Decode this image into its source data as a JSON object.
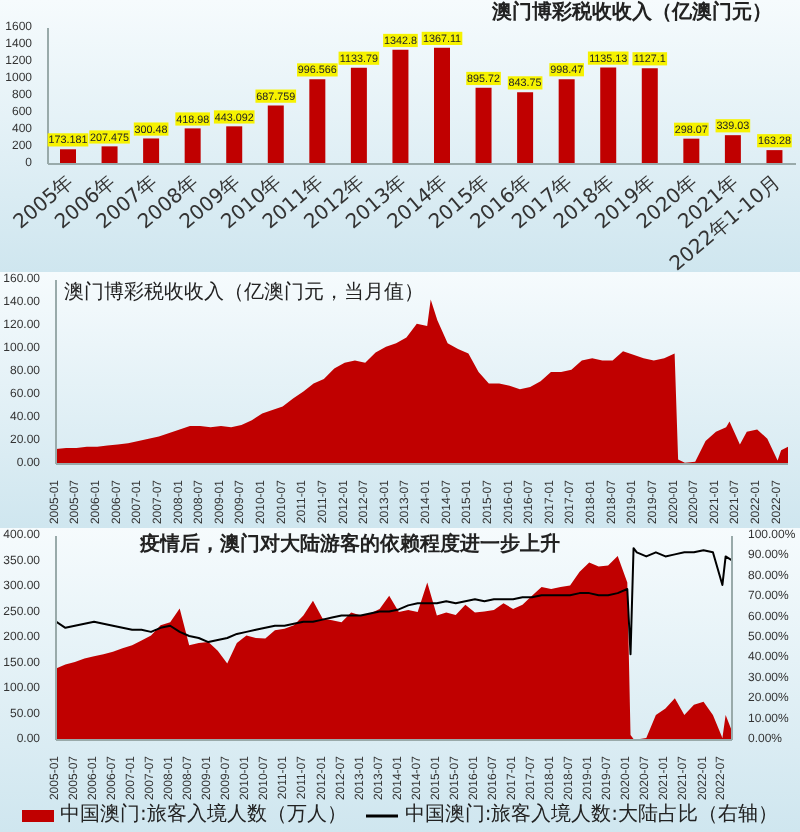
{
  "chart_data": [
    {
      "type": "bar",
      "title": "澳门博彩税收收入（亿澳门元）",
      "categories": [
        "2005年",
        "2006年",
        "2007年",
        "2008年",
        "2009年",
        "2010年",
        "2011年",
        "2012年",
        "2013年",
        "2014年",
        "2015年",
        "2016年",
        "2017年",
        "2018年",
        "2019年",
        "2020年",
        "2021年",
        "2022年1-10月"
      ],
      "values": [
        173.181,
        207.475,
        300.48,
        418.98,
        443.092,
        687.759,
        996.566,
        1133.79,
        1342.8,
        1367.11,
        895.72,
        843.75,
        998.47,
        1135.13,
        1127.1,
        298.07,
        339.03,
        163.28
      ],
      "color": "#c00000",
      "ylim": [
        0,
        1600
      ],
      "yticks": [
        0,
        200,
        400,
        600,
        800,
        1000,
        1200,
        1400,
        1600
      ],
      "data_labels": true
    },
    {
      "type": "area",
      "title": "澳门博彩税收收入（亿澳门元，当月值）",
      "x": [
        "2005-01",
        "2005-04",
        "2005-07",
        "2005-10",
        "2006-01",
        "2006-04",
        "2006-07",
        "2006-10",
        "2007-01",
        "2007-04",
        "2007-07",
        "2007-10",
        "2008-01",
        "2008-04",
        "2008-07",
        "2008-10",
        "2009-01",
        "2009-04",
        "2009-07",
        "2009-10",
        "2010-01",
        "2010-04",
        "2010-07",
        "2010-10",
        "2011-01",
        "2011-04",
        "2011-07",
        "2011-10",
        "2012-01",
        "2012-04",
        "2012-07",
        "2012-10",
        "2013-01",
        "2013-04",
        "2013-07",
        "2013-10",
        "2014-01",
        "2014-02",
        "2014-04",
        "2014-07",
        "2014-10",
        "2015-01",
        "2015-04",
        "2015-07",
        "2015-10",
        "2016-01",
        "2016-04",
        "2016-07",
        "2016-10",
        "2017-01",
        "2017-04",
        "2017-07",
        "2017-10",
        "2018-01",
        "2018-04",
        "2018-07",
        "2018-10",
        "2019-01",
        "2019-04",
        "2019-07",
        "2019-10",
        "2020-01",
        "2020-02",
        "2020-04",
        "2020-07",
        "2020-10",
        "2021-01",
        "2021-04",
        "2021-05",
        "2021-08",
        "2021-10",
        "2022-01",
        "2022-04",
        "2022-07",
        "2022-08",
        "2022-10"
      ],
      "values": [
        13,
        14,
        14,
        15,
        15,
        16,
        17,
        18,
        20,
        22,
        24,
        27,
        30,
        33,
        33,
        32,
        33,
        32,
        34,
        38,
        44,
        47,
        50,
        57,
        63,
        70,
        74,
        83,
        88,
        90,
        88,
        97,
        102,
        105,
        110,
        122,
        120,
        143,
        125,
        105,
        100,
        96,
        80,
        70,
        70,
        68,
        65,
        67,
        72,
        80,
        80,
        82,
        90,
        92,
        90,
        90,
        98,
        95,
        92,
        90,
        92,
        96,
        4,
        1,
        2,
        20,
        28,
        32,
        37,
        17,
        28,
        30,
        22,
        3,
        12,
        15
      ],
      "color": "#c00000",
      "xlim": [
        "2005-01",
        "2022-10"
      ],
      "xticks": [
        "2005-01",
        "2005-07",
        "2006-01",
        "2006-07",
        "2007-01",
        "2007-07",
        "2008-01",
        "2008-07",
        "2009-01",
        "2009-07",
        "2010-01",
        "2010-07",
        "2011-01",
        "2011-07",
        "2012-01",
        "2012-07",
        "2013-01",
        "2013-07",
        "2014-01",
        "2014-07",
        "2015-01",
        "2015-07",
        "2016-01",
        "2016-07",
        "2017-01",
        "2017-07",
        "2018-01",
        "2018-07",
        "2019-01",
        "2019-07",
        "2020-01",
        "2020-07",
        "2021-01",
        "2021-07",
        "2022-01",
        "2022-07"
      ],
      "ylim": [
        0,
        160
      ],
      "yticks": [
        {
          "value": 0,
          "label": "0.00"
        },
        {
          "value": 20,
          "label": "20.00"
        },
        {
          "value": 40,
          "label": "40.00"
        },
        {
          "value": 60,
          "label": "60.00"
        },
        {
          "value": 80,
          "label": "80.00"
        },
        {
          "value": 100,
          "label": "100.00"
        },
        {
          "value": 120,
          "label": "120.00"
        },
        {
          "value": 140,
          "label": "140.00"
        },
        {
          "value": 160,
          "label": "160.00"
        }
      ]
    },
    {
      "type": "area",
      "title": "疫情后，澳门对大陆游客的依赖程度进一步上升",
      "x": [
        "2005-01",
        "2005-04",
        "2005-07",
        "2005-10",
        "2006-01",
        "2006-04",
        "2006-07",
        "2006-10",
        "2007-01",
        "2007-04",
        "2007-07",
        "2007-10",
        "2008-01",
        "2008-04",
        "2008-07",
        "2008-10",
        "2009-01",
        "2009-04",
        "2009-07",
        "2009-10",
        "2010-01",
        "2010-04",
        "2010-07",
        "2010-10",
        "2011-01",
        "2011-04",
        "2011-07",
        "2011-10",
        "2012-01",
        "2012-04",
        "2012-07",
        "2012-10",
        "2013-01",
        "2013-04",
        "2013-07",
        "2013-10",
        "2014-01",
        "2014-04",
        "2014-07",
        "2014-10",
        "2015-01",
        "2015-04",
        "2015-07",
        "2015-10",
        "2016-01",
        "2016-04",
        "2016-07",
        "2016-10",
        "2017-01",
        "2017-04",
        "2017-07",
        "2017-10",
        "2018-01",
        "2018-04",
        "2018-07",
        "2018-10",
        "2019-01",
        "2019-04",
        "2019-07",
        "2019-10",
        "2020-01",
        "2020-02",
        "2020-03",
        "2020-04",
        "2020-07",
        "2020-10",
        "2021-01",
        "2021-04",
        "2021-07",
        "2021-10",
        "2022-01",
        "2022-04",
        "2022-07",
        "2022-08",
        "2022-10"
      ],
      "series": [
        {
          "name": "中国澳门:旅客入境人数（万人）",
          "type": "area",
          "color": "#c00000",
          "values": [
            140,
            148,
            153,
            160,
            164,
            168,
            173,
            180,
            186,
            195,
            205,
            225,
            231,
            258,
            186,
            190,
            192,
            175,
            150,
            190,
            205,
            200,
            199,
            215,
            218,
            225,
            244,
            273,
            238,
            235,
            231,
            250,
            244,
            248,
            257,
            283,
            251,
            255,
            251,
            309,
            244,
            250,
            245,
            265,
            250,
            252,
            255,
            268,
            257,
            265,
            283,
            300,
            296,
            300,
            303,
            330,
            348,
            340,
            342,
            361,
            309,
            10,
            2,
            1,
            4,
            49,
            62,
            82,
            49,
            69,
            75,
            49,
            4,
            49,
            17
          ]
        },
        {
          "name": "中国澳门:旅客入境人数:大陆占比（右轴）",
          "type": "line",
          "axis": "y2",
          "color": "#000000",
          "values": [
            58,
            55,
            56,
            57,
            58,
            57,
            56,
            55,
            54,
            54,
            53,
            55,
            56,
            53,
            51,
            50,
            48,
            49,
            50,
            52,
            53,
            54,
            55,
            56,
            56,
            57,
            58,
            58,
            59,
            60,
            61,
            61,
            61,
            62,
            63,
            63,
            64,
            66,
            67,
            67,
            67,
            68,
            67,
            68,
            69,
            68,
            69,
            69,
            69,
            70,
            70,
            71,
            71,
            71,
            71,
            72,
            72,
            71,
            71,
            72,
            74,
            42,
            94,
            92,
            90,
            92,
            90,
            91,
            92,
            92,
            93,
            92,
            76,
            90,
            88
          ]
        }
      ],
      "xlim": [
        "2005-01",
        "2022-10"
      ],
      "xticks": [
        "2005-01",
        "2005-07",
        "2006-01",
        "2006-07",
        "2007-01",
        "2007-07",
        "2008-01",
        "2008-07",
        "2009-01",
        "2009-07",
        "2010-01",
        "2010-07",
        "2011-01",
        "2011-07",
        "2012-01",
        "2012-07",
        "2013-01",
        "2013-07",
        "2014-01",
        "2014-07",
        "2015-01",
        "2015-07",
        "2016-01",
        "2016-07",
        "2017-01",
        "2017-07",
        "2018-01",
        "2018-07",
        "2019-01",
        "2019-07",
        "2020-01",
        "2020-07",
        "2021-01",
        "2021-07",
        "2022-01",
        "2022-07"
      ],
      "ylim": [
        0,
        400
      ],
      "yticks": [
        {
          "value": 0,
          "label": "0.00"
        },
        {
          "value": 50,
          "label": "50.00"
        },
        {
          "value": 100,
          "label": "100.00"
        },
        {
          "value": 150,
          "label": "150.00"
        },
        {
          "value": 200,
          "label": "200.00"
        },
        {
          "value": 250,
          "label": "250.00"
        },
        {
          "value": 300,
          "label": "300.00"
        },
        {
          "value": 350,
          "label": "350.00"
        },
        {
          "value": 400,
          "label": "400.00"
        }
      ],
      "y2lim": [
        0,
        100
      ],
      "y2ticks": [
        {
          "value": 0,
          "label": "0.00%"
        },
        {
          "value": 10,
          "label": "10.00%"
        },
        {
          "value": 20,
          "label": "20.00%"
        },
        {
          "value": 30,
          "label": "30.00%"
        },
        {
          "value": 40,
          "label": "40.00%"
        },
        {
          "value": 50,
          "label": "50.00%"
        },
        {
          "value": 60,
          "label": "60.00%"
        },
        {
          "value": 70,
          "label": "70.00%"
        },
        {
          "value": 80,
          "label": "80.00%"
        },
        {
          "value": 90,
          "label": "90.00%"
        },
        {
          "value": 100,
          "label": "100.00%"
        }
      ],
      "legend": "bottom",
      "marker": "none"
    }
  ]
}
